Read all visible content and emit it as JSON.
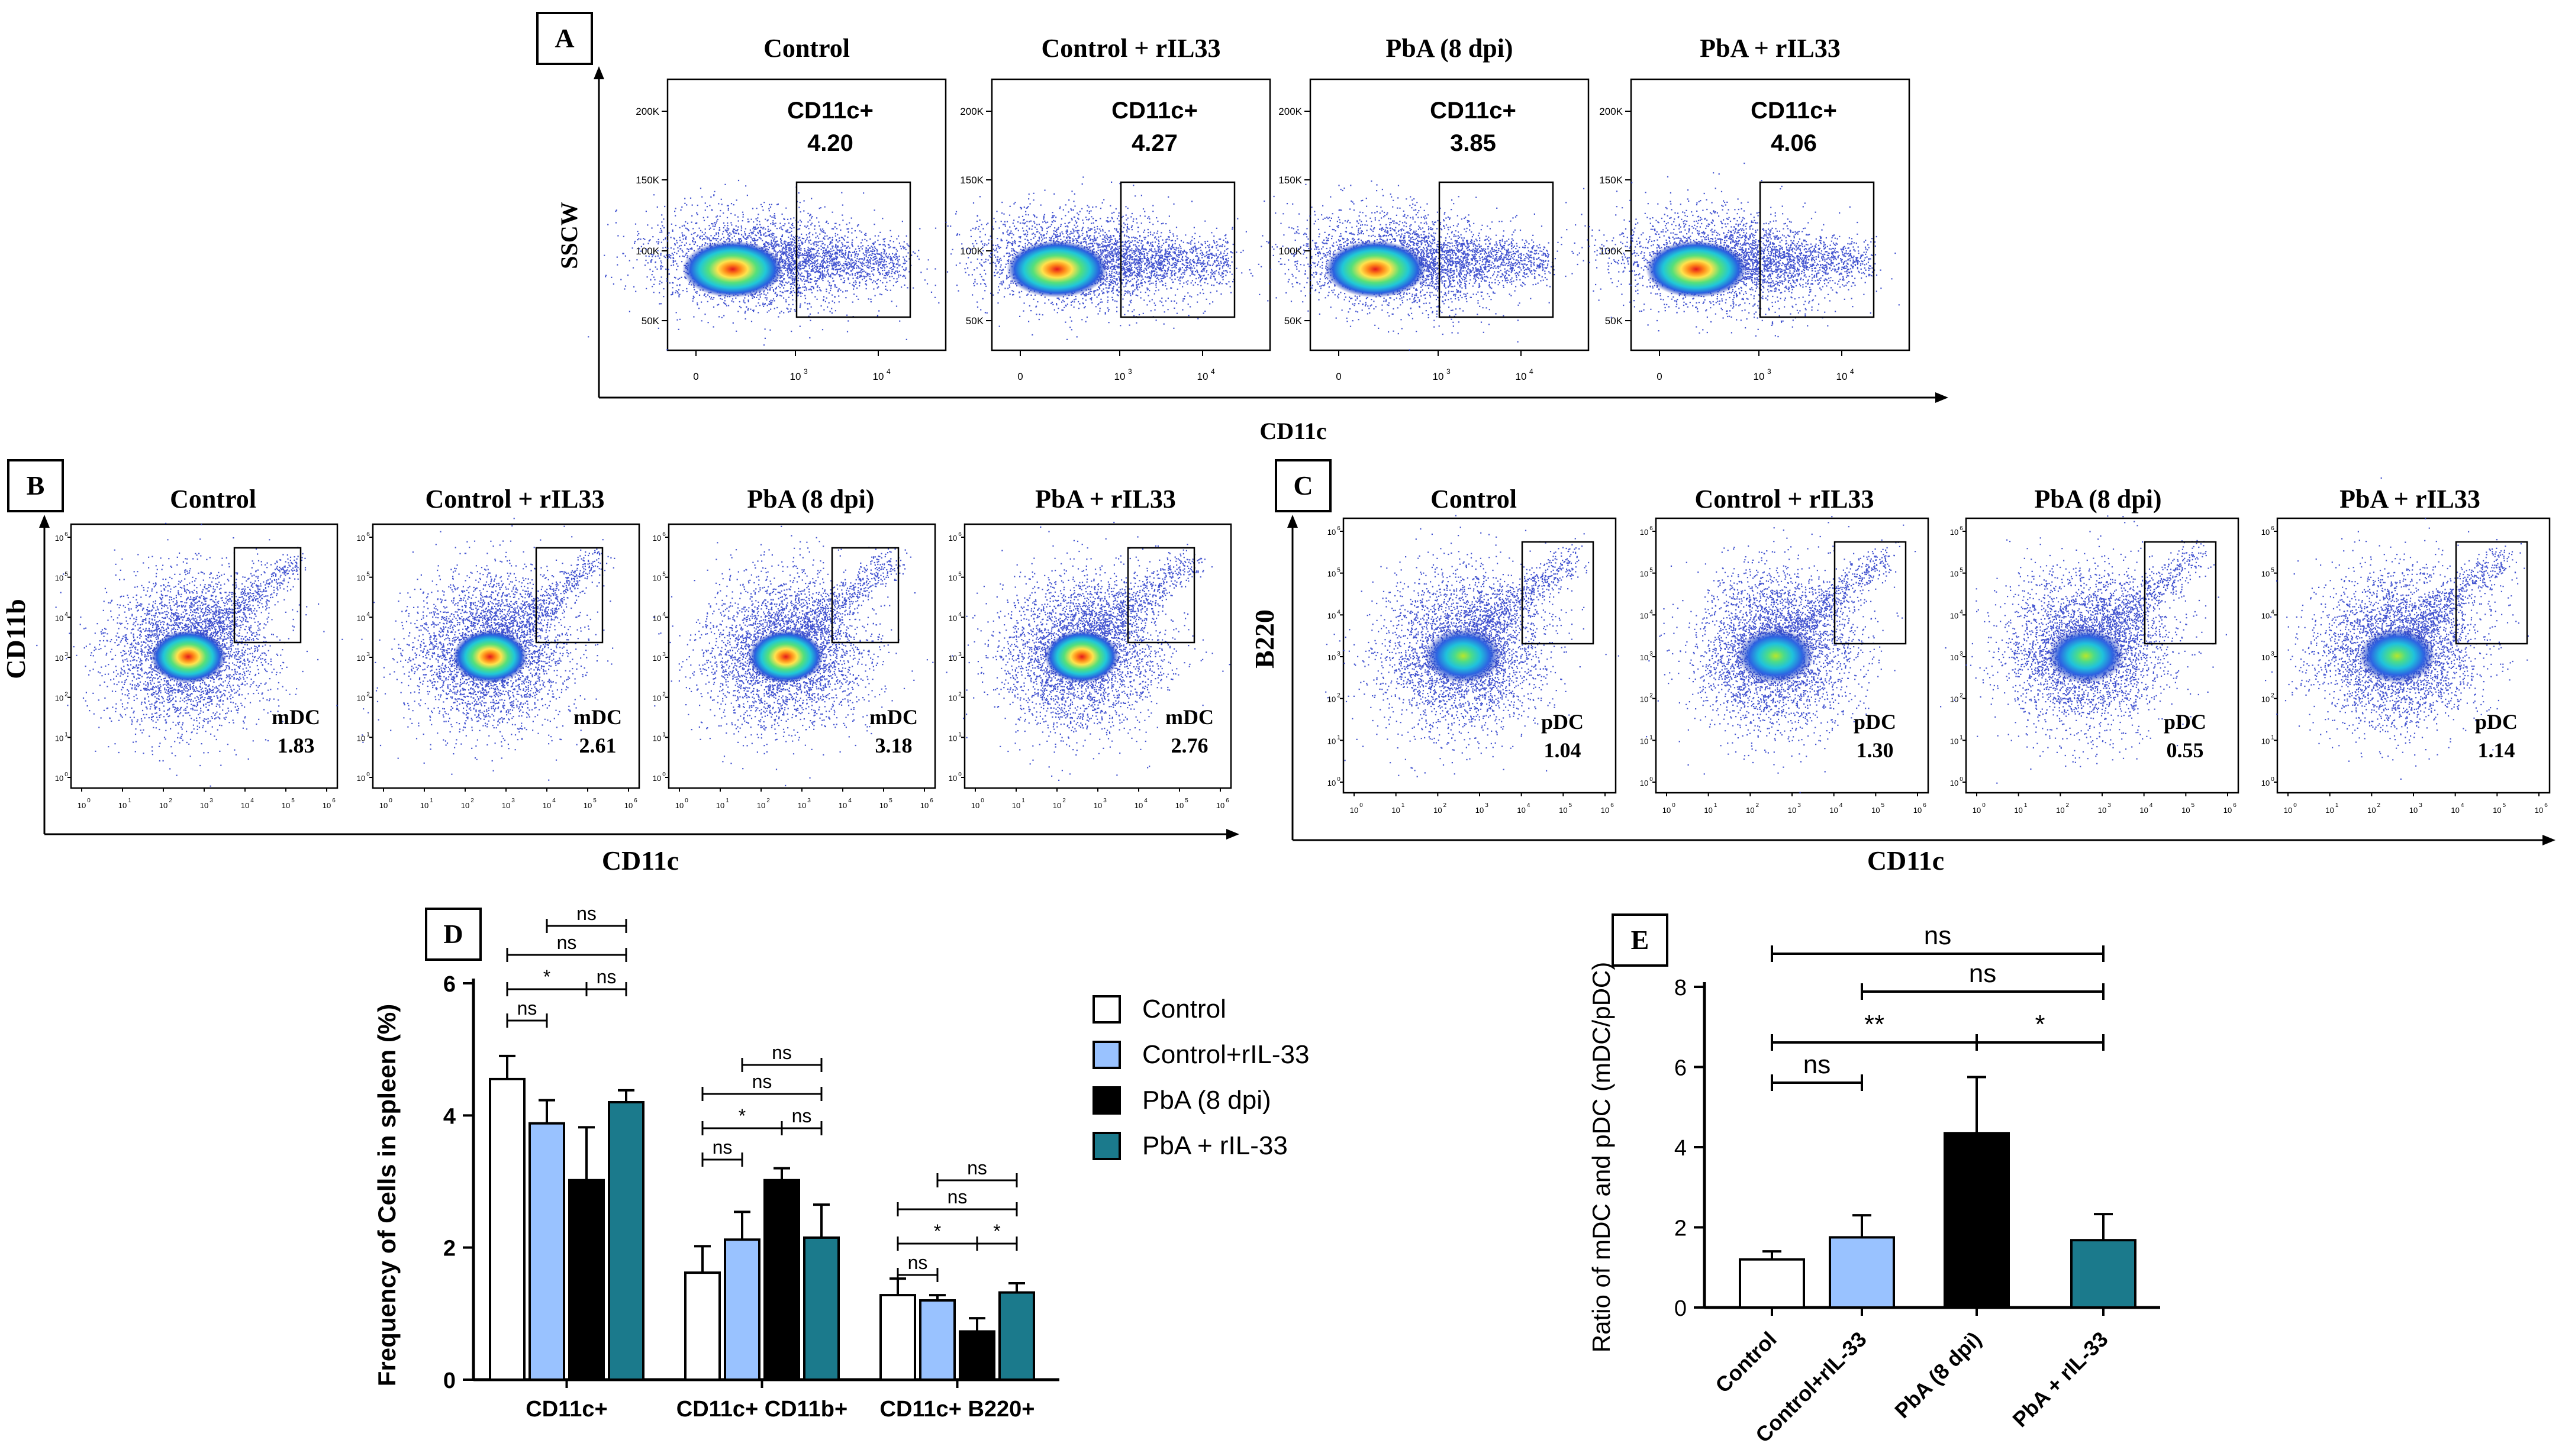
{
  "colors": {
    "control": "#ffffff",
    "control_rIL33": "#99c2ff",
    "pba": "#000000",
    "pba_rIL33": "#1b7a8c",
    "axis": "#000000"
  },
  "panel_letters": {
    "A": "A",
    "B": "B",
    "C": "C",
    "D": "D",
    "E": "E"
  },
  "flow": {
    "A": {
      "y_axis_label": "SSCW",
      "x_axis_label": "CD11c",
      "y_ticks": [
        "200K",
        "150K",
        "100K",
        "50K"
      ],
      "x_ticks": [
        {
          "base": "0",
          "exp": ""
        },
        {
          "base": "10",
          "exp": "3"
        },
        {
          "base": "10",
          "exp": "4"
        }
      ],
      "plots": [
        {
          "title": "Control",
          "gate_label": "CD11c+",
          "value": "4.20"
        },
        {
          "title": "Control + rIL33",
          "gate_label": "CD11c+",
          "value": "4.27"
        },
        {
          "title": "PbA (8 dpi)",
          "gate_label": "CD11c+",
          "value": "3.85"
        },
        {
          "title": "PbA + rIL33",
          "gate_label": "CD11c+",
          "value": "4.06"
        }
      ]
    },
    "B": {
      "y_axis_label": "CD11b",
      "x_axis_label": "CD11c",
      "log_exps": [
        "0",
        "1",
        "2",
        "3",
        "4",
        "5",
        "6"
      ],
      "plots": [
        {
          "title": "Control",
          "gate_label": "mDC",
          "value": "1.83"
        },
        {
          "title": "Control + rIL33",
          "gate_label": "mDC",
          "value": "2.61"
        },
        {
          "title": "PbA (8 dpi)",
          "gate_label": "mDC",
          "value": "3.18"
        },
        {
          "title": "PbA + rIL33",
          "gate_label": "mDC",
          "value": "2.76"
        }
      ]
    },
    "C": {
      "y_axis_label": "B220",
      "x_axis_label": "CD11c",
      "log_exps": [
        "0",
        "1",
        "2",
        "3",
        "4",
        "5",
        "6"
      ],
      "plots": [
        {
          "title": "Control",
          "gate_label": "pDC",
          "value": "1.04"
        },
        {
          "title": "Control + rIL33",
          "gate_label": "pDC",
          "value": "1.30"
        },
        {
          "title": "PbA (8 dpi)",
          "gate_label": "pDC",
          "value": "0.55"
        },
        {
          "title": "PbA + rIL33",
          "gate_label": "pDC",
          "value": "1.14"
        }
      ]
    }
  },
  "chart_data": [
    {
      "id": "D",
      "type": "bar",
      "ylabel": "Frequency of Cells in spleen (%)",
      "ylim": [
        0,
        6
      ],
      "yticks": [
        0,
        2,
        4,
        6
      ],
      "categories": [
        "CD11c+",
        "CD11c+ CD11b+",
        "CD11c+ B220+"
      ],
      "legend": [
        "Control",
        "Control+rIL-33",
        "PbA (8 dpi)",
        "PbA + rIL-33"
      ],
      "series": [
        {
          "name": "Control",
          "values": [
            4.55,
            1.62,
            1.28
          ],
          "errors": [
            0.35,
            0.4,
            0.25
          ]
        },
        {
          "name": "Control+rIL-33",
          "values": [
            3.88,
            2.12,
            1.2
          ],
          "errors": [
            0.35,
            0.42,
            0.08
          ]
        },
        {
          "name": "PbA (8 dpi)",
          "values": [
            3.02,
            3.02,
            0.73
          ],
          "errors": [
            0.8,
            0.18,
            0.2
          ]
        },
        {
          "name": "PbA + rIL-33",
          "values": [
            4.2,
            2.15,
            1.32
          ],
          "errors": [
            0.18,
            0.5,
            0.14
          ]
        }
      ],
      "significance": [
        {
          "group": 0,
          "from": 0,
          "to": 1,
          "label": "ns"
        },
        {
          "group": 0,
          "from": 0,
          "to": 2,
          "label": "*"
        },
        {
          "group": 0,
          "from": 2,
          "to": 3,
          "label": "ns"
        },
        {
          "group": 0,
          "from": 0,
          "to": 3,
          "label": "ns"
        },
        {
          "group": 0,
          "from": 1,
          "to": 3,
          "label": "ns"
        },
        {
          "group": 1,
          "from": 0,
          "to": 1,
          "label": "ns"
        },
        {
          "group": 1,
          "from": 0,
          "to": 2,
          "label": "*"
        },
        {
          "group": 1,
          "from": 2,
          "to": 3,
          "label": "ns"
        },
        {
          "group": 1,
          "from": 0,
          "to": 3,
          "label": "ns"
        },
        {
          "group": 1,
          "from": 1,
          "to": 3,
          "label": "ns"
        },
        {
          "group": 2,
          "from": 0,
          "to": 1,
          "label": "ns"
        },
        {
          "group": 2,
          "from": 0,
          "to": 2,
          "label": "*"
        },
        {
          "group": 2,
          "from": 2,
          "to": 3,
          "label": "*"
        },
        {
          "group": 2,
          "from": 0,
          "to": 3,
          "label": "ns"
        },
        {
          "group": 2,
          "from": 1,
          "to": 3,
          "label": "ns"
        }
      ]
    },
    {
      "id": "E",
      "type": "bar",
      "ylabel": "Ratio of mDC and pDC (mDC/pDC)",
      "ylim": [
        0,
        8
      ],
      "yticks": [
        0,
        2,
        4,
        6,
        8
      ],
      "categories": [
        "Control",
        "Control+rIL-33",
        "PbA (8 dpi)",
        "PbA + rIL-33"
      ],
      "values": [
        1.2,
        1.75,
        4.35,
        1.68
      ],
      "errors": [
        0.2,
        0.55,
        1.4,
        0.65
      ],
      "significance": [
        {
          "from": 0,
          "to": 1,
          "label": "ns"
        },
        {
          "from": 0,
          "to": 2,
          "label": "**"
        },
        {
          "from": 2,
          "to": 3,
          "label": "*"
        },
        {
          "from": 1,
          "to": 3,
          "label": "ns"
        },
        {
          "from": 0,
          "to": 3,
          "label": "ns"
        }
      ]
    }
  ]
}
